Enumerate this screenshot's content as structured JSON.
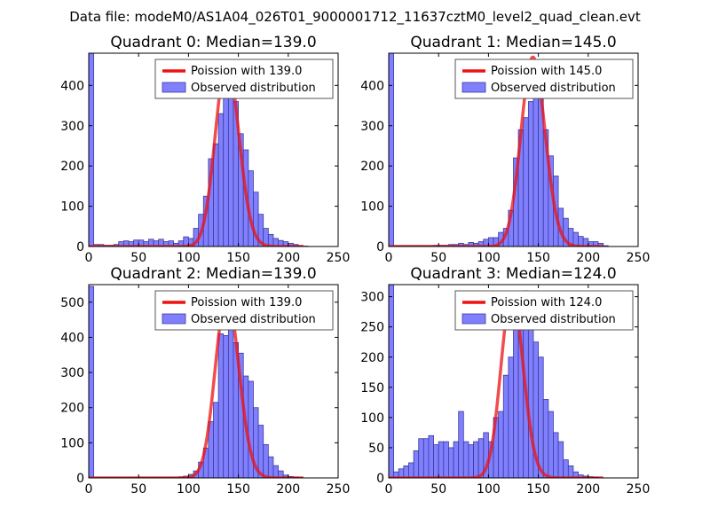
{
  "figure_title": "Data file: modeM0/AS1A04_026T01_9000001712_11637cztM0_level2_quad_clean.evt",
  "colors": {
    "bar_fill": "#8080ff",
    "bar_edge": "#3a3a9a",
    "poisson_line": "#ee1111",
    "axes": "#000000",
    "legend_edge": "#555555"
  },
  "chart_data": [
    {
      "type": "bar",
      "title": "Quadrant 0: Median=139.0",
      "xlim": [
        0,
        250
      ],
      "ylim": [
        0,
        480
      ],
      "xticks": [
        0,
        50,
        100,
        150,
        200,
        250
      ],
      "yticks": [
        0,
        100,
        200,
        300,
        400
      ],
      "median": 139.0,
      "bin_width": 5,
      "bins_start": [
        0,
        5,
        10,
        15,
        20,
        25,
        30,
        35,
        40,
        45,
        50,
        55,
        60,
        65,
        70,
        75,
        80,
        85,
        90,
        95,
        100,
        105,
        110,
        115,
        120,
        125,
        130,
        135,
        140,
        145,
        150,
        155,
        160,
        165,
        170,
        175,
        180,
        185,
        190,
        195,
        200,
        205,
        210,
        215
      ],
      "counts": [
        480,
        5,
        5,
        3,
        3,
        5,
        12,
        14,
        12,
        16,
        16,
        12,
        18,
        14,
        18,
        12,
        14,
        8,
        14,
        24,
        20,
        45,
        80,
        125,
        218,
        255,
        330,
        390,
        445,
        360,
        280,
        240,
        188,
        135,
        80,
        45,
        30,
        20,
        15,
        12,
        8,
        5,
        2,
        1
      ],
      "series": [
        {
          "name": "Poission with 139.0",
          "kind": "line",
          "mean": 139.0,
          "peak": 460
        },
        {
          "name": "Observed distribution",
          "kind": "hist"
        }
      ]
    },
    {
      "type": "bar",
      "title": "Quadrant 1: Median=145.0",
      "xlim": [
        0,
        250
      ],
      "ylim": [
        0,
        480
      ],
      "xticks": [
        0,
        50,
        100,
        150,
        200,
        250
      ],
      "yticks": [
        0,
        100,
        200,
        300,
        400
      ],
      "median": 145.0,
      "bin_width": 5,
      "bins_start": [
        0,
        5,
        10,
        15,
        20,
        25,
        30,
        35,
        40,
        45,
        50,
        55,
        60,
        65,
        70,
        75,
        80,
        85,
        90,
        95,
        100,
        105,
        110,
        115,
        120,
        125,
        130,
        135,
        140,
        145,
        150,
        155,
        160,
        165,
        170,
        175,
        180,
        185,
        190,
        195,
        200,
        205,
        210,
        215
      ],
      "counts": [
        480,
        2,
        2,
        2,
        2,
        2,
        2,
        2,
        2,
        3,
        3,
        3,
        5,
        5,
        8,
        5,
        10,
        8,
        12,
        18,
        22,
        22,
        35,
        45,
        90,
        220,
        290,
        320,
        360,
        440,
        410,
        290,
        225,
        175,
        95,
        70,
        45,
        35,
        25,
        20,
        12,
        12,
        8,
        2
      ],
      "series": [
        {
          "name": "Poission with 145.0",
          "kind": "line",
          "mean": 145.0,
          "peak": 470
        },
        {
          "name": "Observed distribution",
          "kind": "hist"
        }
      ]
    },
    {
      "type": "bar",
      "title": "Quadrant 2: Median=139.0",
      "xlim": [
        0,
        250
      ],
      "ylim": [
        0,
        550
      ],
      "xticks": [
        0,
        50,
        100,
        150,
        200,
        250
      ],
      "yticks": [
        0,
        100,
        200,
        300,
        400,
        500
      ],
      "median": 139.0,
      "bin_width": 5,
      "bins_start": [
        0,
        5,
        10,
        15,
        20,
        25,
        30,
        35,
        40,
        45,
        50,
        55,
        60,
        65,
        70,
        75,
        80,
        85,
        90,
        95,
        100,
        105,
        110,
        115,
        120,
        125,
        130,
        135,
        140,
        145,
        150,
        155,
        160,
        165,
        170,
        175,
        180,
        185,
        190,
        195,
        200,
        205,
        210,
        215
      ],
      "counts": [
        545,
        1,
        1,
        1,
        1,
        1,
        1,
        1,
        1,
        1,
        1,
        1,
        1,
        1,
        1,
        1,
        1,
        1,
        3,
        5,
        10,
        20,
        45,
        85,
        160,
        215,
        410,
        405,
        525,
        385,
        355,
        290,
        275,
        200,
        150,
        95,
        60,
        35,
        20,
        8,
        4,
        2,
        1,
        0
      ],
      "series": [
        {
          "name": "Poission with 139.0",
          "kind": "line",
          "mean": 139.0,
          "peak": 520
        },
        {
          "name": "Observed distribution",
          "kind": "hist"
        }
      ]
    },
    {
      "type": "bar",
      "title": "Quadrant 3: Median=124.0",
      "xlim": [
        0,
        250
      ],
      "ylim": [
        0,
        320
      ],
      "xticks": [
        0,
        50,
        100,
        150,
        200,
        250
      ],
      "yticks": [
        0,
        50,
        100,
        150,
        200,
        250,
        300
      ],
      "median": 124.0,
      "bin_width": 5,
      "bins_start": [
        0,
        5,
        10,
        15,
        20,
        25,
        30,
        35,
        40,
        45,
        50,
        55,
        60,
        65,
        70,
        75,
        80,
        85,
        90,
        95,
        100,
        105,
        110,
        115,
        120,
        125,
        130,
        135,
        140,
        145,
        150,
        155,
        160,
        165,
        170,
        175,
        180,
        185,
        190,
        195,
        200,
        205,
        210,
        215
      ],
      "counts": [
        320,
        10,
        15,
        20,
        25,
        45,
        65,
        65,
        70,
        55,
        60,
        60,
        50,
        60,
        110,
        60,
        55,
        60,
        65,
        75,
        60,
        100,
        110,
        170,
        200,
        250,
        290,
        310,
        300,
        225,
        200,
        130,
        110,
        75,
        60,
        30,
        20,
        10,
        5,
        3,
        2,
        1,
        0,
        0
      ],
      "series": [
        {
          "name": "Poission with 124.0",
          "kind": "line",
          "mean": 124.0,
          "peak": 305
        },
        {
          "name": "Observed distribution",
          "kind": "hist"
        }
      ]
    }
  ]
}
